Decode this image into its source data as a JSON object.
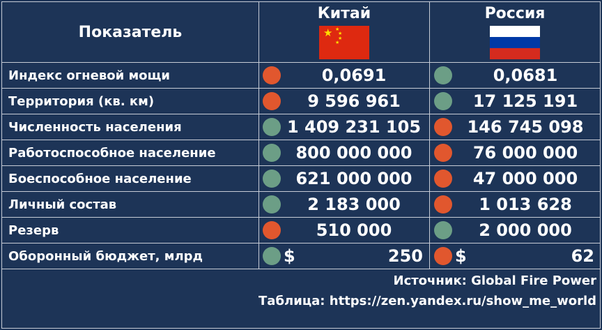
{
  "header": {
    "label": "Показатель",
    "countries": [
      {
        "name": "Китай",
        "flag": "china-flag"
      },
      {
        "name": "Россия",
        "flag": "russia-flag"
      }
    ]
  },
  "colors": {
    "background": "#1d3457",
    "grid": "#c7ccd6",
    "worse": "#e1572e",
    "better": "#6c9e86",
    "china_red": "#de2910",
    "china_yellow": "#ffde00",
    "russia_white": "#ffffff",
    "russia_blue": "#0039a6",
    "russia_red": "#d52b1e"
  },
  "rows": [
    {
      "label": "Индекс огневой мощи",
      "china": {
        "value": "0,0691",
        "status": "red"
      },
      "russia": {
        "value": "0,0681",
        "status": "green"
      }
    },
    {
      "label": "Территория (кв. км)",
      "china": {
        "value": "9 596 961",
        "status": "red"
      },
      "russia": {
        "value": "17 125 191",
        "status": "green"
      }
    },
    {
      "label": "Численность населения",
      "china": {
        "value": "1 409 231 105",
        "status": "green"
      },
      "russia": {
        "value": "146 745 098",
        "status": "red"
      }
    },
    {
      "label": "Работоспособное население",
      "china": {
        "value": "800 000 000",
        "status": "green"
      },
      "russia": {
        "value": "76 000 000",
        "status": "red"
      }
    },
    {
      "label": "Боеспособное население",
      "china": {
        "value": "621 000 000",
        "status": "green"
      },
      "russia": {
        "value": "47 000 000",
        "status": "red"
      }
    },
    {
      "label": "Личный состав",
      "china": {
        "value": "2 183 000",
        "status": "green"
      },
      "russia": {
        "value": "1 013 628",
        "status": "red"
      }
    },
    {
      "label": "Резерв",
      "china": {
        "value": "510 000",
        "status": "red"
      },
      "russia": {
        "value": "2 000 000",
        "status": "green"
      }
    }
  ],
  "budget_row": {
    "label": "Оборонный бюджет, млрд",
    "currency": "$",
    "china": {
      "value": "250",
      "status": "green"
    },
    "russia": {
      "value": "62",
      "status": "red"
    }
  },
  "footer": {
    "source": "Источник: Global Fire Power",
    "table": "Таблица: https://zen.yandex.ru/show_me_world"
  }
}
